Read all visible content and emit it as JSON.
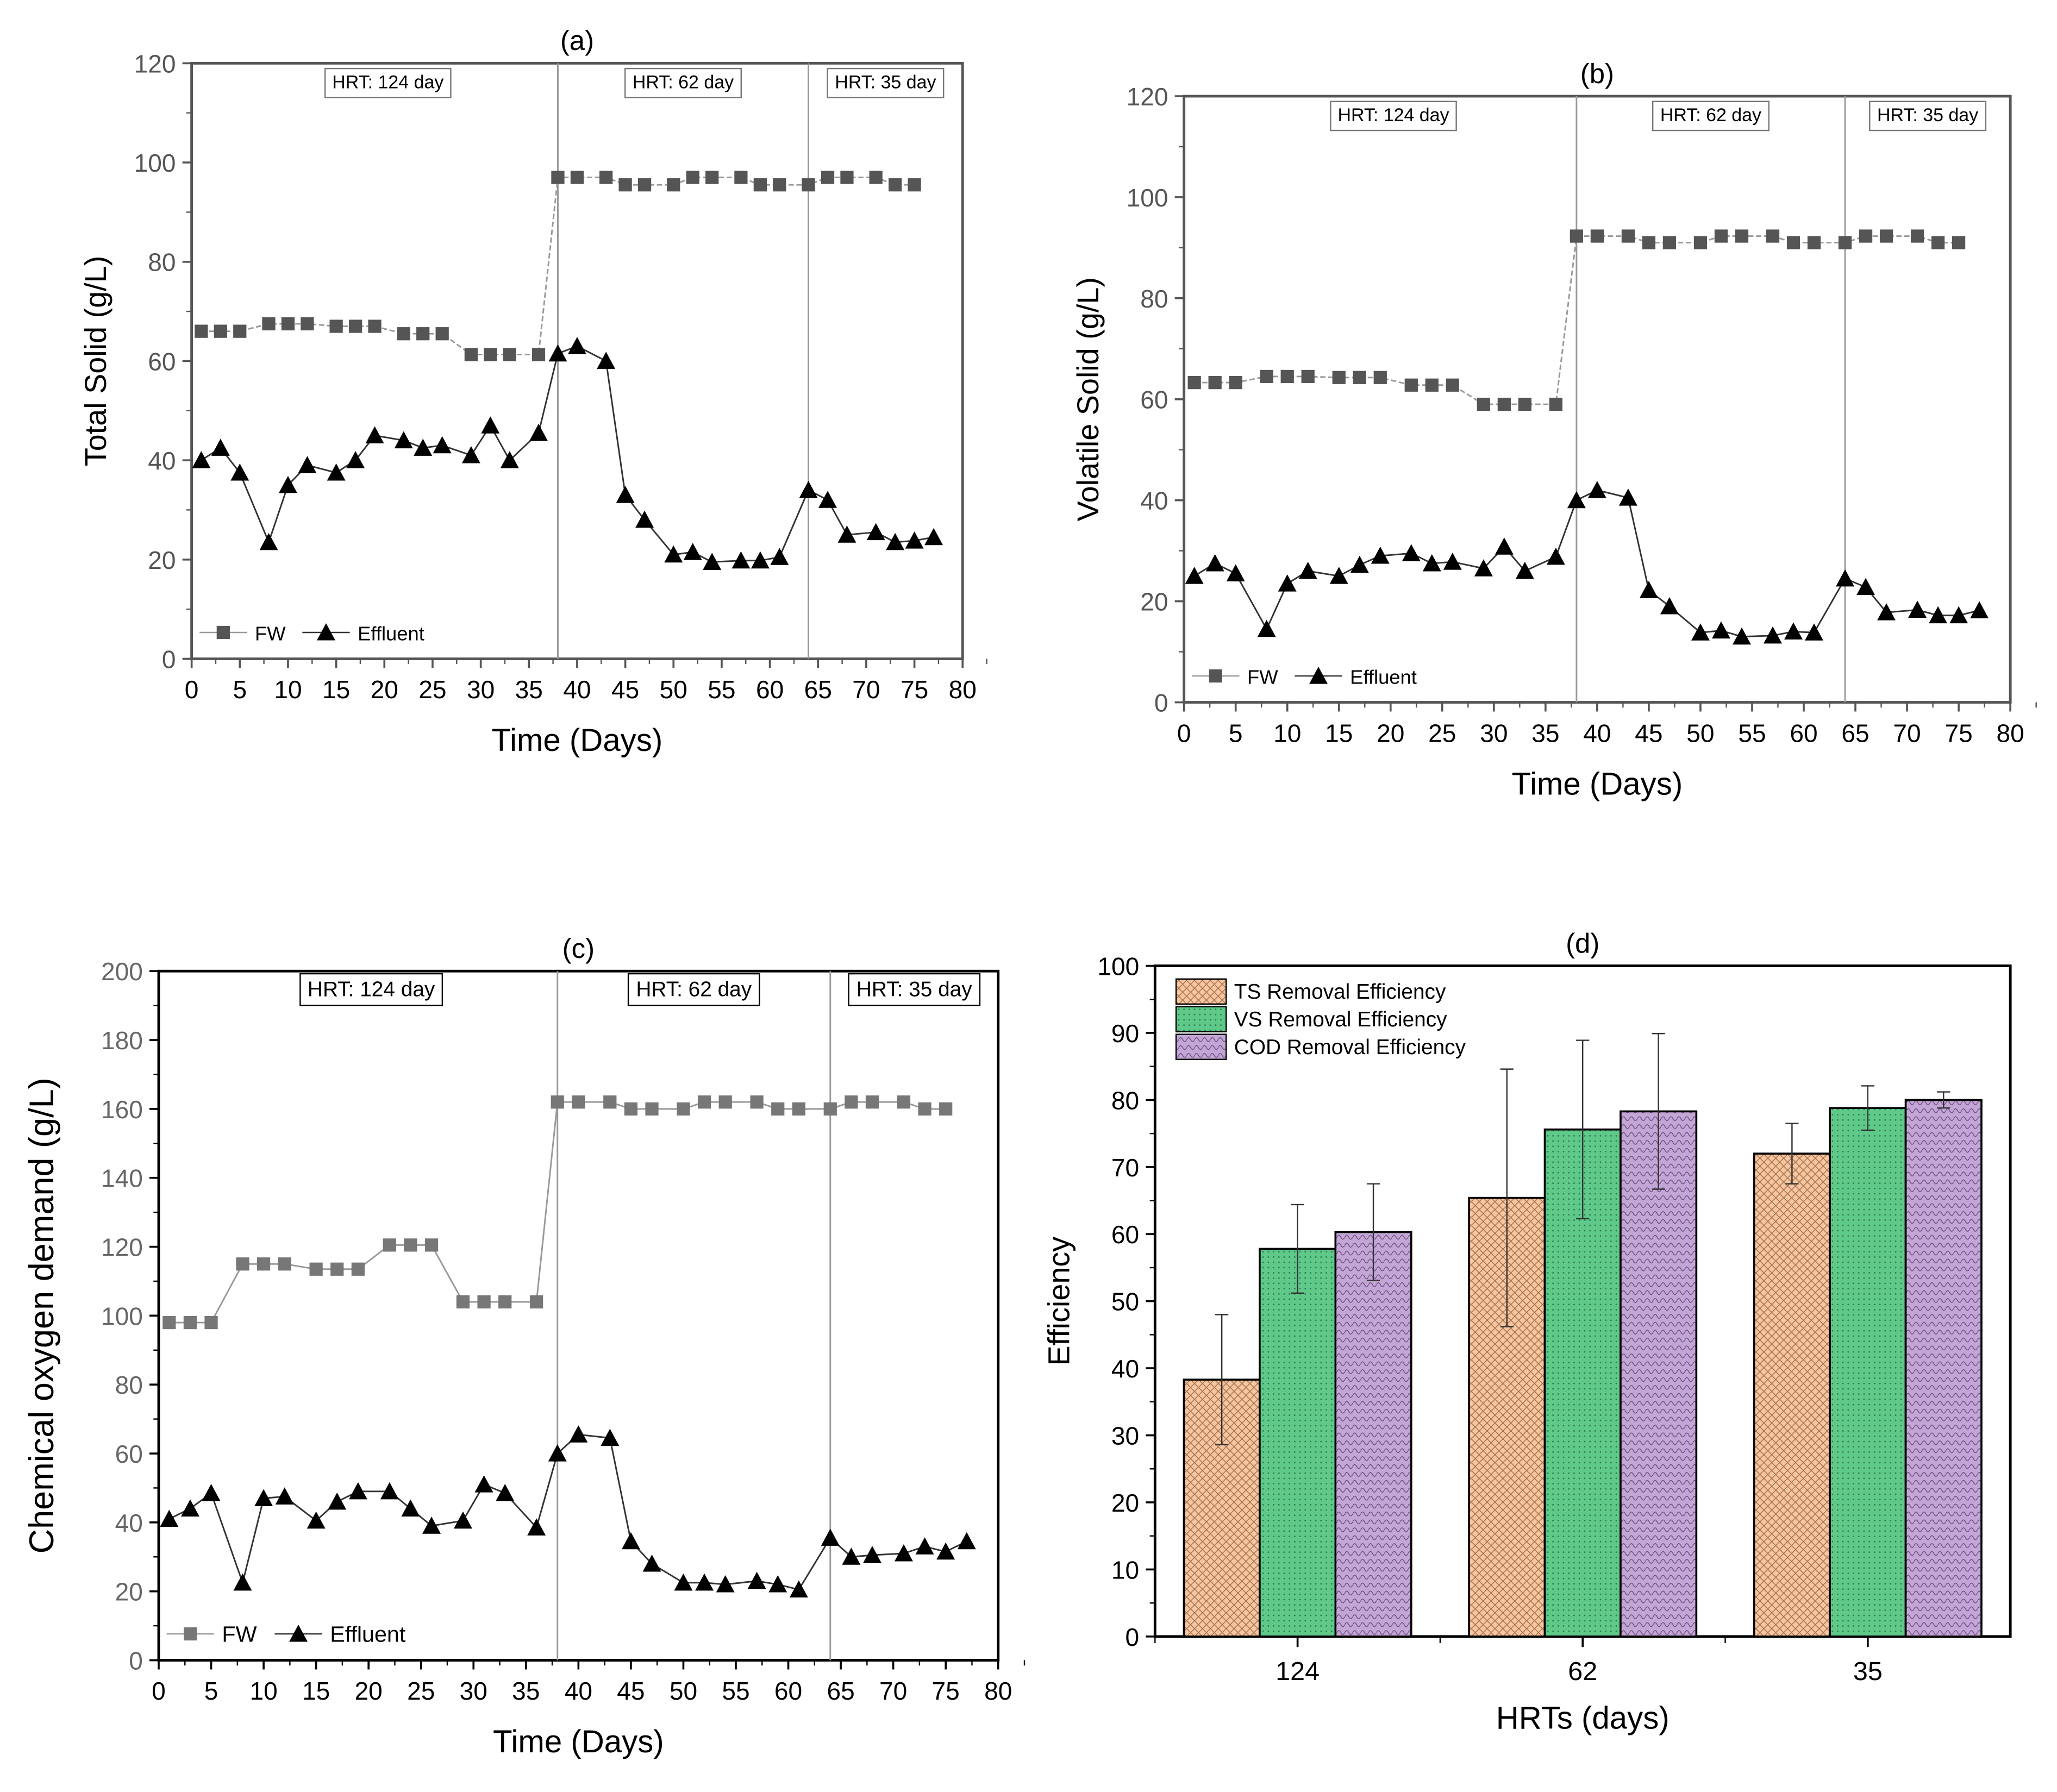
{
  "chart_data": [
    {
      "type": "line",
      "title": "(a)",
      "xlabel": "Time (Days)",
      "ylabel": "Total Solid (g/L)",
      "xlim": [
        0,
        80
      ],
      "ylim": [
        0,
        120
      ],
      "xticks": [
        0,
        5,
        10,
        15,
        20,
        25,
        30,
        35,
        40,
        45,
        50,
        55,
        60,
        65,
        70,
        75,
        80
      ],
      "yticks": [
        0,
        20,
        40,
        60,
        80,
        100,
        120
      ],
      "hrt_boundaries": [
        38,
        64
      ],
      "annotations": [
        "HRT: 124 day",
        "HRT: 62 day",
        "HRT: 35 day"
      ],
      "legend": "bottom-left",
      "series": [
        {
          "name": "FW",
          "marker": "square",
          "color": "#555555",
          "x": [
            1,
            3,
            5,
            8,
            10,
            12,
            15,
            17,
            19,
            22,
            24,
            26,
            29,
            31,
            33,
            36,
            38,
            40,
            43,
            45,
            47,
            50,
            52,
            54,
            57,
            59,
            61,
            64,
            66,
            68,
            71,
            73,
            75
          ],
          "values": [
            66,
            66,
            66,
            67.5,
            67.5,
            67.5,
            67,
            67,
            67,
            65.5,
            65.5,
            65.5,
            61.3,
            61.3,
            61.3,
            61.3,
            97,
            97,
            97,
            95.5,
            95.5,
            95.5,
            97,
            97,
            97,
            95.5,
            95.5,
            95.5,
            97,
            97,
            97,
            95.5,
            95.5
          ]
        },
        {
          "name": "Effluent",
          "marker": "triangle",
          "color": "#000000",
          "x": [
            1,
            3,
            5,
            8,
            10,
            12,
            15,
            17,
            19,
            22,
            24,
            26,
            29,
            31,
            33,
            36,
            38,
            40,
            43,
            45,
            47,
            50,
            52,
            54,
            57,
            59,
            61,
            64,
            66,
            68,
            71,
            73,
            75,
            77
          ],
          "values": [
            40,
            42.5,
            37.5,
            23.5,
            35,
            39,
            37.5,
            40,
            45,
            44,
            42.5,
            43,
            41,
            47,
            40,
            45.5,
            61.5,
            63,
            60,
            33,
            28,
            21,
            21.5,
            19.5,
            19.8,
            19.8,
            20.5,
            34,
            32,
            25,
            25.5,
            23.5,
            23.8,
            24.5
          ]
        }
      ]
    },
    {
      "type": "line",
      "title": "(b)",
      "xlabel": "Time (Days)",
      "ylabel": "Volatile Solid (g/L)",
      "xlim": [
        0,
        80
      ],
      "ylim": [
        0,
        120
      ],
      "xticks": [
        0,
        5,
        10,
        15,
        20,
        25,
        30,
        35,
        40,
        45,
        50,
        55,
        60,
        65,
        70,
        75,
        80
      ],
      "yticks": [
        0,
        20,
        40,
        60,
        80,
        100,
        120
      ],
      "hrt_boundaries": [
        38,
        64
      ],
      "annotations": [
        "HRT: 124 day",
        "HRT: 62 day",
        "HRT: 35 day"
      ],
      "legend": "bottom-left",
      "series": [
        {
          "name": "FW",
          "marker": "square",
          "color": "#555555",
          "x": [
            1,
            3,
            5,
            8,
            10,
            12,
            15,
            17,
            19,
            22,
            24,
            26,
            29,
            31,
            33,
            36,
            38,
            40,
            43,
            45,
            47,
            50,
            52,
            54,
            57,
            59,
            61,
            64,
            66,
            68,
            71,
            73,
            75
          ],
          "values": [
            63.3,
            63.3,
            63.3,
            64.5,
            64.5,
            64.5,
            64.3,
            64.3,
            64.3,
            62.8,
            62.8,
            62.8,
            59,
            59,
            59,
            59,
            92.3,
            92.3,
            92.3,
            91,
            91,
            91,
            92.3,
            92.3,
            92.3,
            91,
            91,
            91,
            92.3,
            92.3,
            92.3,
            91,
            91
          ]
        },
        {
          "name": "Effluent",
          "marker": "triangle",
          "color": "#000000",
          "x": [
            1,
            3,
            5,
            8,
            10,
            12,
            15,
            17,
            19,
            22,
            24,
            26,
            29,
            31,
            33,
            36,
            38,
            40,
            43,
            45,
            47,
            50,
            52,
            54,
            57,
            59,
            61,
            64,
            66,
            68,
            71,
            73,
            75,
            77
          ],
          "values": [
            25,
            27.5,
            25.5,
            14.5,
            23.5,
            26,
            25,
            27.2,
            29,
            29.5,
            27.5,
            27.8,
            26.5,
            30.8,
            26,
            28.8,
            40,
            42,
            40.5,
            22.2,
            19,
            13.8,
            14.2,
            13,
            13.2,
            14,
            13.8,
            24.5,
            22.8,
            17.8,
            18.3,
            17.2,
            17.2,
            18.2
          ]
        }
      ]
    },
    {
      "type": "line",
      "title": "(c)",
      "xlabel": "Time (Days)",
      "ylabel": "Chemical oxygen demand (g/L)",
      "xlim": [
        0,
        80
      ],
      "ylim": [
        0,
        200
      ],
      "xticks": [
        0,
        5,
        10,
        15,
        20,
        25,
        30,
        35,
        40,
        45,
        50,
        55,
        60,
        65,
        70,
        75,
        80
      ],
      "yticks": [
        0,
        20,
        40,
        60,
        80,
        100,
        120,
        140,
        160,
        180,
        200
      ],
      "hrt_boundaries": [
        38,
        64
      ],
      "annotations": [
        "HRT: 124 day",
        "HRT: 62 day",
        "HRT: 35 day"
      ],
      "legend": "bottom-left",
      "series": [
        {
          "name": "FW",
          "marker": "square",
          "color": "#777777",
          "x": [
            1,
            3,
            5,
            8,
            10,
            12,
            15,
            17,
            19,
            22,
            24,
            26,
            29,
            31,
            33,
            36,
            38,
            40,
            43,
            45,
            47,
            50,
            52,
            54,
            57,
            59,
            61,
            64,
            66,
            68,
            71,
            73,
            75
          ],
          "values": [
            98,
            98,
            98,
            115,
            115,
            115,
            113.5,
            113.5,
            113.5,
            120.5,
            120.5,
            120.5,
            104,
            104,
            104,
            104,
            162,
            162,
            162,
            160,
            160,
            160,
            162,
            162,
            162,
            160,
            160,
            160,
            162,
            162,
            162,
            160,
            160
          ]
        },
        {
          "name": "Effluent",
          "marker": "triangle",
          "color": "#000000",
          "x": [
            1,
            3,
            5,
            8,
            10,
            12,
            15,
            17,
            19,
            22,
            24,
            26,
            29,
            31,
            33,
            36,
            38,
            40,
            43,
            45,
            47,
            50,
            52,
            54,
            57,
            59,
            61,
            64,
            66,
            68,
            71,
            73,
            75,
            77
          ],
          "values": [
            41,
            44,
            48.5,
            22.5,
            47,
            47.5,
            40.5,
            46,
            49,
            49,
            44,
            39,
            40.5,
            51,
            48.5,
            38.5,
            60,
            65.5,
            64.5,
            34.5,
            28,
            22.5,
            22.5,
            22,
            23,
            22,
            20.5,
            35.5,
            30,
            30.5,
            31,
            33,
            31.5,
            34.5
          ]
        }
      ]
    },
    {
      "type": "bar",
      "title": "(d)",
      "xlabel": "HRTs (days)",
      "ylabel": "Efficiency",
      "ylim": [
        0,
        100
      ],
      "yticks": [
        0,
        10,
        20,
        30,
        40,
        50,
        60,
        70,
        80,
        90,
        100
      ],
      "categories": [
        "124",
        "62",
        "35"
      ],
      "legend": "top-left",
      "series": [
        {
          "name": "TS Removal Efficiency",
          "color": "#f7c59f",
          "values": [
            38.3,
            65.4,
            72.0
          ],
          "errors": [
            9.7,
            19.2,
            4.5
          ]
        },
        {
          "name": "VS Removal Efficiency",
          "color": "#5fc98a",
          "values": [
            57.8,
            75.6,
            78.8
          ],
          "errors": [
            6.6,
            13.3,
            3.3
          ]
        },
        {
          "name": "COD Removal Efficiency",
          "color": "#c3a6d6",
          "values": [
            60.3,
            78.3,
            80.0
          ],
          "errors": [
            7.2,
            11.6,
            1.2
          ]
        }
      ]
    }
  ]
}
